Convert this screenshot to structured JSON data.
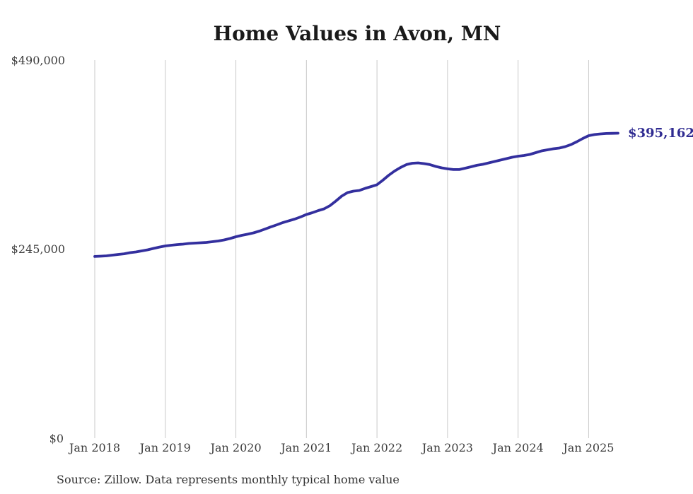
{
  "chart_data": {
    "type": "line",
    "title": "Home Values in Avon, MN",
    "x_start": "2018-01",
    "x_interval": "month",
    "x_end": "2025-06",
    "x_tick_labels": [
      "Jan 2018",
      "Jan 2019",
      "Jan 2020",
      "Jan 2021",
      "Jan 2022",
      "Jan 2023",
      "Jan 2024",
      "Jan 2025"
    ],
    "y_ticks": [
      0,
      245000,
      490000
    ],
    "y_tick_labels": [
      "$0",
      "$245,000",
      "$490,000"
    ],
    "ylim": [
      0,
      490000
    ],
    "grid": "vertical-only",
    "legend": "none",
    "end_label": "$395,162",
    "end_value": 395162,
    "series": [
      {
        "name": "Typical home value",
        "values": [
          235500,
          235800,
          236300,
          237200,
          238100,
          239000,
          240400,
          241300,
          242700,
          244100,
          245900,
          247700,
          249100,
          250000,
          250900,
          251400,
          252300,
          252800,
          253200,
          253700,
          254600,
          255500,
          256900,
          258700,
          261000,
          262900,
          264300,
          266100,
          268400,
          271100,
          273900,
          276600,
          279400,
          281700,
          283900,
          286700,
          289900,
          292200,
          294900,
          297200,
          301300,
          307300,
          313700,
          318300,
          320100,
          321000,
          323800,
          326100,
          328400,
          334300,
          340700,
          346200,
          350800,
          354500,
          356300,
          356700,
          355800,
          354500,
          352200,
          350300,
          349000,
          348100,
          348100,
          349900,
          351700,
          353600,
          354900,
          356700,
          358600,
          360400,
          362200,
          364100,
          365400,
          366400,
          367700,
          370000,
          372300,
          373700,
          375100,
          376000,
          377800,
          380500,
          384200,
          388300,
          392000,
          393500,
          394300,
          394800,
          395000,
          395162
        ]
      }
    ],
    "colors": {
      "line": "#332f9e",
      "end_label": "#2f2b91",
      "gridline": "#c9c9c9"
    },
    "source_note": "Source: Zillow. Data represents monthly typical home value"
  }
}
